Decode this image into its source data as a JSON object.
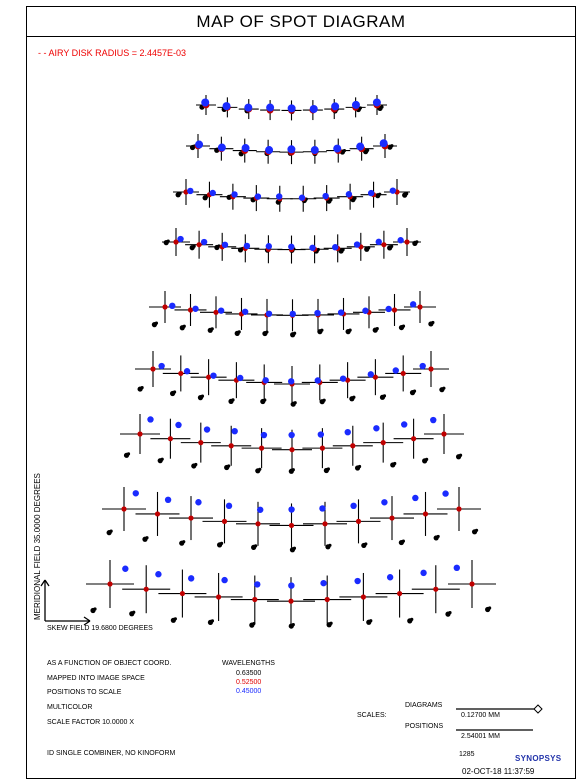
{
  "title": "MAP OF SPOT DIAGRAM",
  "airy_label": "- - AIRY DISK RADIUS =  2.4457E-03",
  "axes": {
    "meridional": "MERIDIONAL FIELD  35.0000 DEGREES",
    "skew": "SKEW FIELD  19.6800 DEGREES"
  },
  "info": {
    "line1": "AS A FUNCTION OF OBJECT COORD.",
    "line2": "MAPPED INTO IMAGE SPACE",
    "line3": "POSITIONS TO SCALE",
    "line4": "MULTICOLOR",
    "line5": "SCALE FACTOR   10.0000 X",
    "line6": "ID SINGLE COMBINER, NO KINOFORM"
  },
  "wavelengths": {
    "header": "WAVELENGTHS",
    "items": [
      {
        "value": "0.63500",
        "color": "#000000"
      },
      {
        "value": "0.52500",
        "color": "#e00000"
      },
      {
        "value": "0.45000",
        "color": "#1a2bff"
      }
    ]
  },
  "scales": {
    "label": "SCALES:",
    "diagrams_label": "DIAGRAMS",
    "diagrams_value": "0.12700    MM",
    "positions_label": "POSITIONS",
    "positions_value": "2.54001    MM"
  },
  "footer": {
    "number": "1285",
    "logo": "SYNOPSYS",
    "date": "02-OCT-18  11:37:59"
  },
  "colors": {
    "red": "#c00000",
    "blue": "#1a2bff",
    "black": "#000000"
  }
}
